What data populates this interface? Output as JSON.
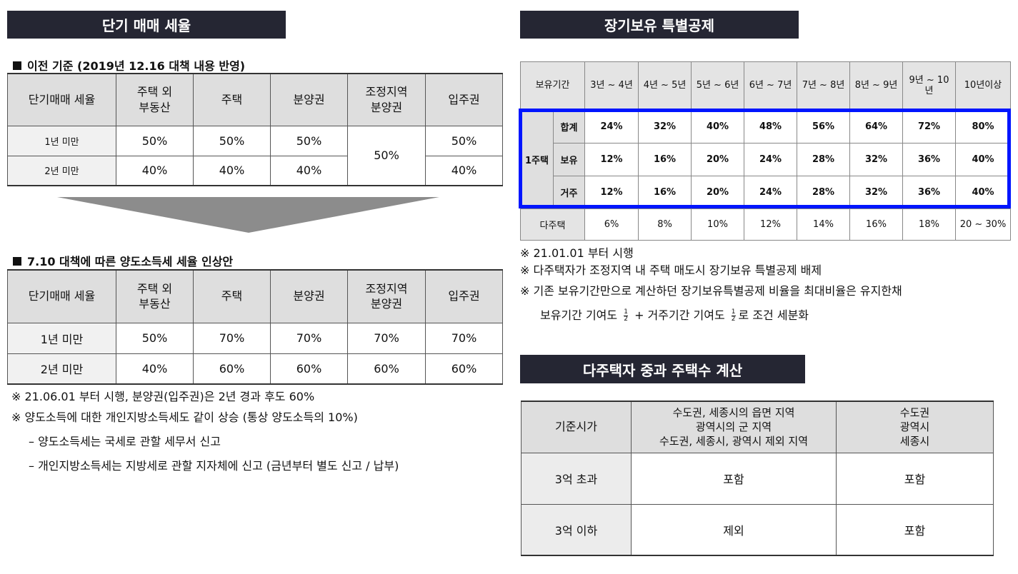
{
  "left": {
    "banner": "단기 매매 세율",
    "before": {
      "heading": "이전 기준 (2019년 12.16 대책 내용 반영)",
      "headers": [
        "단기매매 세율",
        "주택 외\n부동산",
        "주택",
        "분양권",
        "조정지역\n분양권",
        "입주권"
      ],
      "rows": [
        {
          "label": "1년 미만",
          "cells": [
            "50%",
            "50%",
            "50%",
            "50%"
          ]
        },
        {
          "label": "2년 미만",
          "cells": [
            "40%",
            "40%",
            "40%",
            "40%"
          ]
        }
      ],
      "merged": "50%"
    },
    "after": {
      "heading": "7.10 대책에 따른 양도소득세 세율 인상안",
      "headers": [
        "단기매매 세율",
        "주택 외\n부동산",
        "주택",
        "분양권",
        "조정지역\n분양권",
        "입주권"
      ],
      "rows": [
        {
          "label": "1년 미만",
          "cells": [
            "50%",
            "70%",
            "70%",
            "70%",
            "70%"
          ]
        },
        {
          "label": "2년 미만",
          "cells": [
            "40%",
            "60%",
            "60%",
            "60%",
            "60%"
          ]
        }
      ]
    },
    "notes": [
      "※ 21.06.01 부터 시행, 분양권(입주권)은 2년 경과 후도 60%",
      "※ 양도소득에 대한 개인지방소득세도 같이 상승  (통상 양도소득의 10%)",
      "–  양도소득세는 국세로 관할 세무서 신고",
      "–  개인지방소득세는 지방세로 관할 지자체에 신고 (금년부터 별도 신고 / 납부)"
    ]
  },
  "right": {
    "banner": "장기보유 특별공제",
    "deduction": {
      "corner": "보유기간",
      "periods": [
        "3년 ~ 4년",
        "4년 ~ 5년",
        "5년 ~ 6년",
        "6년 ~ 7년",
        "7년 ~ 8년",
        "8년 ~ 9년",
        "9년 ~ 10\n년",
        "10년이상"
      ],
      "group_label": "1주택",
      "rows": [
        {
          "label": "합계",
          "values": [
            "24%",
            "32%",
            "40%",
            "48%",
            "56%",
            "64%",
            "72%",
            "80%"
          ]
        },
        {
          "label": "보유",
          "values": [
            "12%",
            "16%",
            "20%",
            "24%",
            "28%",
            "32%",
            "36%",
            "40%"
          ]
        },
        {
          "label": "거주",
          "values": [
            "12%",
            "16%",
            "20%",
            "24%",
            "28%",
            "32%",
            "36%",
            "40%"
          ]
        }
      ],
      "multi": {
        "label": "다주택",
        "values": [
          "6%",
          "8%",
          "10%",
          "12%",
          "14%",
          "16%",
          "18%",
          "20 ~ 30%"
        ]
      },
      "highlight_color": "#0015ff"
    },
    "notes": [
      "※ 21.01.01 부터 시행",
      "※ 다주택자가 조정지역 내 주택 매도시 장기보유 특별공제 배제",
      "※ 기존 보유기간만으로 계산하던 장기보유특별공제 비율을 최대비율은 유지한채"
    ],
    "fraction_line": {
      "p1": "보유기간 기여도",
      "num": "1",
      "den": "2",
      "p2": "+ 거주기간 기여도",
      "p3": "로 조건 세분화"
    },
    "banner2": "다주택자 중과 주택수 계산",
    "count": {
      "headers": [
        "기준시가",
        "수도권, 세종시의 읍면 지역\n광역시의 군 지역\n수도권, 세종시, 광역시 제외 지역",
        "수도권\n광역시\n세종시"
      ],
      "rows": [
        {
          "label": "3억 초과",
          "cells": [
            "포함",
            "포함"
          ]
        },
        {
          "label": "3억 이하",
          "cells": [
            "제외",
            "포함"
          ]
        }
      ]
    }
  }
}
